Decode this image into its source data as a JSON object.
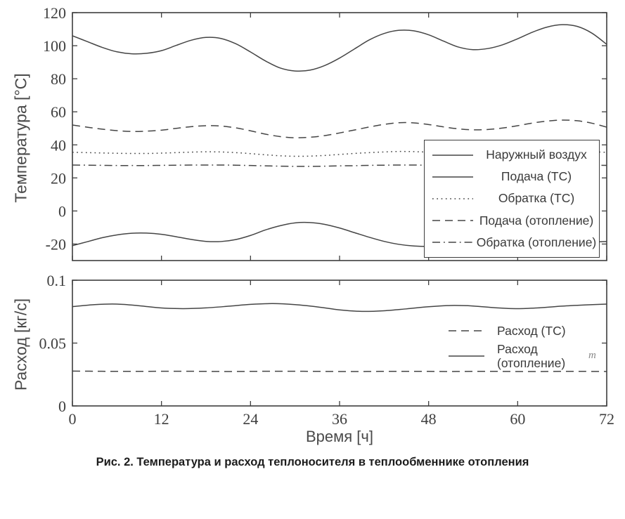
{
  "figure": {
    "caption": "Рис. 2. Температура и расход теплоносителя в теплообменнике отопления",
    "artifact_glyph": "т"
  },
  "colors": {
    "ink": "#3e3e3e",
    "curve": "#454545"
  },
  "chart_data": [
    {
      "type": "line",
      "title": "",
      "xlabel": "",
      "ylabel": "Температура [°C]",
      "xlim": [
        0,
        72
      ],
      "ylim": [
        -30,
        120
      ],
      "xticks": [
        0,
        12,
        24,
        36,
        48,
        60,
        72
      ],
      "xtick_labels_visible": false,
      "yticks": [
        -20,
        0,
        20,
        40,
        60,
        80,
        100,
        120
      ],
      "ytick_labels": [
        "-20",
        "0",
        "20",
        "40",
        "60",
        "80",
        "100",
        "120"
      ],
      "grid": false,
      "legend_position": "right-middle-boxed",
      "x": [
        0,
        2,
        4,
        6,
        8,
        10,
        12,
        14,
        16,
        18,
        20,
        22,
        24,
        26,
        28,
        30,
        32,
        34,
        36,
        38,
        40,
        42,
        44,
        46,
        48,
        50,
        52,
        54,
        56,
        58,
        60,
        62,
        64,
        66,
        68,
        70,
        72
      ],
      "series": [
        {
          "name": "Наружный воздух",
          "style": "solid",
          "y": [
            -21.0,
            -18.6,
            -16.2,
            -14.5,
            -13.5,
            -13.4,
            -14.1,
            -15.6,
            -17.2,
            -18.4,
            -18.5,
            -17.3,
            -14.8,
            -11.5,
            -8.9,
            -7.2,
            -7.0,
            -8.1,
            -10.3,
            -13.1,
            -15.9,
            -18.4,
            -20.2,
            -21.2,
            -21.5,
            -21.2,
            -20.6,
            -19.9,
            -19.3,
            -18.9,
            -18.7,
            -18.7,
            -18.8,
            -19.0,
            -19.0,
            -18.8,
            -18.5
          ]
        },
        {
          "name": "Подача (ТС)",
          "style": "solid",
          "y": [
            106.0,
            102.5,
            99.0,
            96.3,
            95.1,
            95.4,
            97.0,
            100.2,
            103.3,
            105.0,
            104.4,
            101.2,
            96.2,
            90.8,
            86.5,
            84.7,
            85.2,
            88.0,
            92.5,
            98.0,
            103.5,
            107.4,
            109.3,
            109.0,
            106.6,
            102.8,
            99.2,
            97.6,
            98.3,
            100.6,
            104.2,
            108.2,
            111.3,
            112.7,
            111.7,
            107.6,
            100.8
          ]
        },
        {
          "name": "Обратка (ТС)",
          "style": "dotted",
          "y": [
            35.5,
            35.3,
            35.1,
            34.9,
            34.8,
            34.8,
            35.0,
            35.3,
            35.6,
            35.8,
            35.7,
            35.3,
            34.7,
            34.0,
            33.4,
            33.1,
            33.2,
            33.6,
            34.2,
            34.8,
            35.3,
            35.7,
            36.0,
            35.9,
            35.6,
            35.3,
            35.0,
            34.9,
            35.0,
            35.2,
            35.5,
            35.8,
            36.0,
            36.1,
            36.0,
            35.8,
            35.5
          ]
        },
        {
          "name": "Подача (отопление)",
          "style": "dashed",
          "y": [
            52.0,
            50.7,
            49.5,
            48.6,
            48.1,
            48.3,
            48.9,
            50.0,
            51.0,
            51.6,
            51.4,
            50.3,
            48.5,
            46.5,
            45.0,
            44.3,
            44.6,
            45.6,
            47.2,
            49.0,
            50.8,
            52.4,
            53.4,
            53.3,
            52.3,
            50.9,
            49.7,
            49.1,
            49.3,
            50.2,
            51.6,
            53.2,
            54.4,
            55.0,
            54.6,
            53.1,
            50.7
          ]
        },
        {
          "name": "Обратка (отопление)",
          "style": "dashdot",
          "y": [
            27.8,
            27.7,
            27.6,
            27.5,
            27.5,
            27.5,
            27.6,
            27.7,
            27.8,
            27.8,
            27.8,
            27.7,
            27.5,
            27.3,
            27.1,
            27.0,
            27.0,
            27.1,
            27.3,
            27.4,
            27.6,
            27.7,
            27.8,
            27.8,
            27.7,
            27.6,
            27.5,
            27.4,
            27.5,
            27.5,
            27.6,
            27.7,
            27.8,
            27.9,
            27.8,
            27.7,
            27.6
          ]
        }
      ]
    },
    {
      "type": "line",
      "title": "",
      "xlabel": "Время [ч]",
      "ylabel": "Расход [кг/с]",
      "xlim": [
        0,
        72
      ],
      "ylim": [
        0,
        0.1
      ],
      "xticks": [
        0,
        12,
        24,
        36,
        48,
        60,
        72
      ],
      "xtick_labels": [
        "0",
        "12",
        "24",
        "36",
        "48",
        "60",
        "72"
      ],
      "xtick_labels_visible": true,
      "yticks": [
        0,
        0.05,
        0.1
      ],
      "ytick_labels": [
        "0",
        "0.05",
        "0.1"
      ],
      "grid": false,
      "legend_position": "right-middle-unboxed",
      "x": [
        0,
        3,
        6,
        9,
        12,
        15,
        18,
        21,
        24,
        27,
        30,
        33,
        36,
        39,
        42,
        45,
        48,
        51,
        54,
        57,
        60,
        63,
        66,
        69,
        72
      ],
      "series": [
        {
          "name": "Расход (ТС)",
          "style": "dashed",
          "y": [
            0.0277,
            0.0276,
            0.0275,
            0.0275,
            0.0276,
            0.0276,
            0.0275,
            0.0274,
            0.0275,
            0.0276,
            0.0276,
            0.0275,
            0.0274,
            0.0274,
            0.0275,
            0.0275,
            0.0275,
            0.0274,
            0.0275,
            0.0275,
            0.0274,
            0.0274,
            0.0275,
            0.0275,
            0.0274
          ]
        },
        {
          "name": "Расход (отопление)",
          "style": "solid",
          "y": [
            0.079,
            0.0806,
            0.081,
            0.0797,
            0.0779,
            0.0774,
            0.078,
            0.0793,
            0.0808,
            0.0814,
            0.0806,
            0.0788,
            0.0764,
            0.0752,
            0.0757,
            0.0772,
            0.0789,
            0.0799,
            0.0795,
            0.0781,
            0.0774,
            0.0781,
            0.0794,
            0.0803,
            0.081
          ]
        }
      ]
    }
  ]
}
